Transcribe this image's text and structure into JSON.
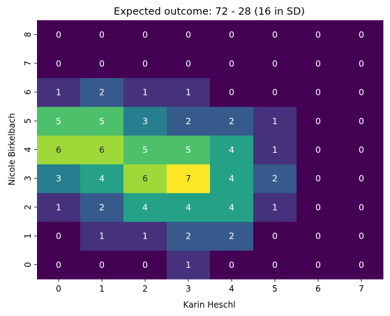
{
  "chart_data": {
    "type": "heatmap",
    "title": "Expected outcome: 72 - 28 (16 in SD)",
    "xlabel": "Karin Heschl",
    "ylabel": "Nicole Birkelbach",
    "x_categories": [
      "0",
      "1",
      "2",
      "3",
      "4",
      "5",
      "6",
      "7"
    ],
    "y_categories": [
      "0",
      "1",
      "2",
      "3",
      "4",
      "5",
      "6",
      "7",
      "8"
    ],
    "y_order": "bottom-to-top",
    "colormap": "viridis",
    "value_range": [
      0,
      7
    ],
    "annotations": true,
    "values": [
      [
        0,
        0,
        0,
        1,
        0,
        0,
        0,
        0
      ],
      [
        0,
        1,
        1,
        2,
        2,
        0,
        0,
        0
      ],
      [
        1,
        2,
        4,
        4,
        4,
        1,
        0,
        0
      ],
      [
        3,
        4,
        6,
        7,
        4,
        2,
        0,
        0
      ],
      [
        6,
        6,
        5,
        5,
        4,
        1,
        0,
        0
      ],
      [
        5,
        5,
        3,
        2,
        2,
        1,
        0,
        0
      ],
      [
        1,
        2,
        1,
        1,
        0,
        0,
        0,
        0
      ],
      [
        0,
        0,
        0,
        0,
        0,
        0,
        0,
        0
      ],
      [
        0,
        0,
        0,
        0,
        0,
        0,
        0,
        0
      ]
    ]
  }
}
